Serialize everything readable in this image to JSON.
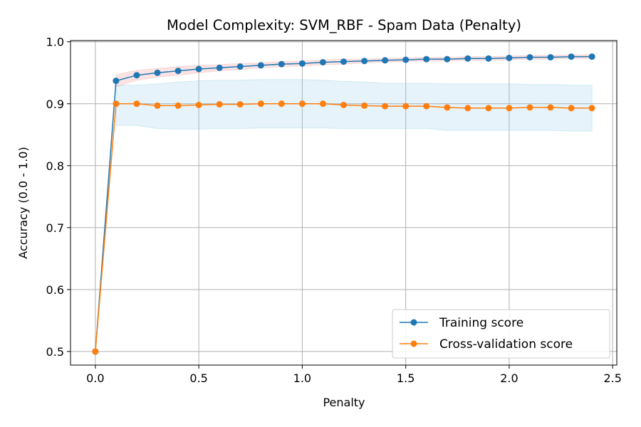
{
  "chart_data": {
    "type": "line",
    "title": "Model Complexity: SVM_RBF - Spam Data (Penalty)",
    "xlabel": "Penalty",
    "ylabel": "Accuracy (0.0 - 1.0)",
    "xlim": [
      -0.12,
      2.52
    ],
    "ylim": [
      0.478,
      1.002
    ],
    "xticks": [
      0.0,
      0.5,
      1.0,
      1.5,
      2.0,
      2.5
    ],
    "xtick_labels": [
      "0.0",
      "0.5",
      "1.0",
      "1.5",
      "2.0",
      "2.5"
    ],
    "yticks": [
      0.5,
      0.6,
      0.7,
      0.8,
      0.9,
      1.0
    ],
    "ytick_labels": [
      "0.5",
      "0.6",
      "0.7",
      "0.8",
      "0.9",
      "1.0"
    ],
    "grid": true,
    "legend_position": "lower-right",
    "x": [
      0.0,
      0.1,
      0.2,
      0.3,
      0.4,
      0.5,
      0.6,
      0.7,
      0.8,
      0.9,
      1.0,
      1.1,
      1.2,
      1.3,
      1.4,
      1.5,
      1.6,
      1.7,
      1.8,
      1.9,
      2.0,
      2.1,
      2.2,
      2.3,
      2.4
    ],
    "series": [
      {
        "name": "Training score",
        "color": "#1f77b4",
        "band_color": "#f4a6a6",
        "values": [
          0.5,
          0.937,
          0.946,
          0.95,
          0.953,
          0.956,
          0.958,
          0.96,
          0.962,
          0.964,
          0.965,
          0.967,
          0.968,
          0.969,
          0.97,
          0.971,
          0.972,
          0.972,
          0.973,
          0.973,
          0.974,
          0.975,
          0.975,
          0.976,
          0.976
        ],
        "band_lower": [
          0.5,
          0.927,
          0.938,
          0.943,
          0.946,
          0.95,
          0.953,
          0.955,
          0.958,
          0.96,
          0.961,
          0.963,
          0.964,
          0.966,
          0.967,
          0.968,
          0.969,
          0.969,
          0.97,
          0.97,
          0.971,
          0.972,
          0.972,
          0.973,
          0.973
        ],
        "band_upper": [
          0.5,
          0.947,
          0.954,
          0.957,
          0.96,
          0.962,
          0.963,
          0.965,
          0.966,
          0.968,
          0.969,
          0.971,
          0.972,
          0.972,
          0.973,
          0.974,
          0.975,
          0.975,
          0.976,
          0.976,
          0.977,
          0.978,
          0.978,
          0.979,
          0.979
        ]
      },
      {
        "name": "Cross-validation score",
        "color": "#ff7f0e",
        "band_color": "#8ecae6",
        "values": [
          0.5,
          0.9,
          0.9,
          0.897,
          0.897,
          0.898,
          0.899,
          0.899,
          0.9,
          0.9,
          0.9,
          0.9,
          0.898,
          0.897,
          0.896,
          0.896,
          0.896,
          0.894,
          0.893,
          0.893,
          0.893,
          0.894,
          0.894,
          0.893,
          0.893
        ],
        "band_lower": [
          0.5,
          0.865,
          0.865,
          0.86,
          0.859,
          0.859,
          0.86,
          0.86,
          0.861,
          0.861,
          0.861,
          0.861,
          0.86,
          0.86,
          0.86,
          0.86,
          0.86,
          0.857,
          0.857,
          0.857,
          0.857,
          0.857,
          0.857,
          0.856,
          0.856
        ],
        "band_upper": [
          0.5,
          0.93,
          0.93,
          0.932,
          0.935,
          0.937,
          0.938,
          0.938,
          0.939,
          0.939,
          0.939,
          0.938,
          0.936,
          0.935,
          0.933,
          0.933,
          0.933,
          0.932,
          0.932,
          0.932,
          0.932,
          0.931,
          0.931,
          0.93,
          0.93
        ]
      }
    ]
  }
}
